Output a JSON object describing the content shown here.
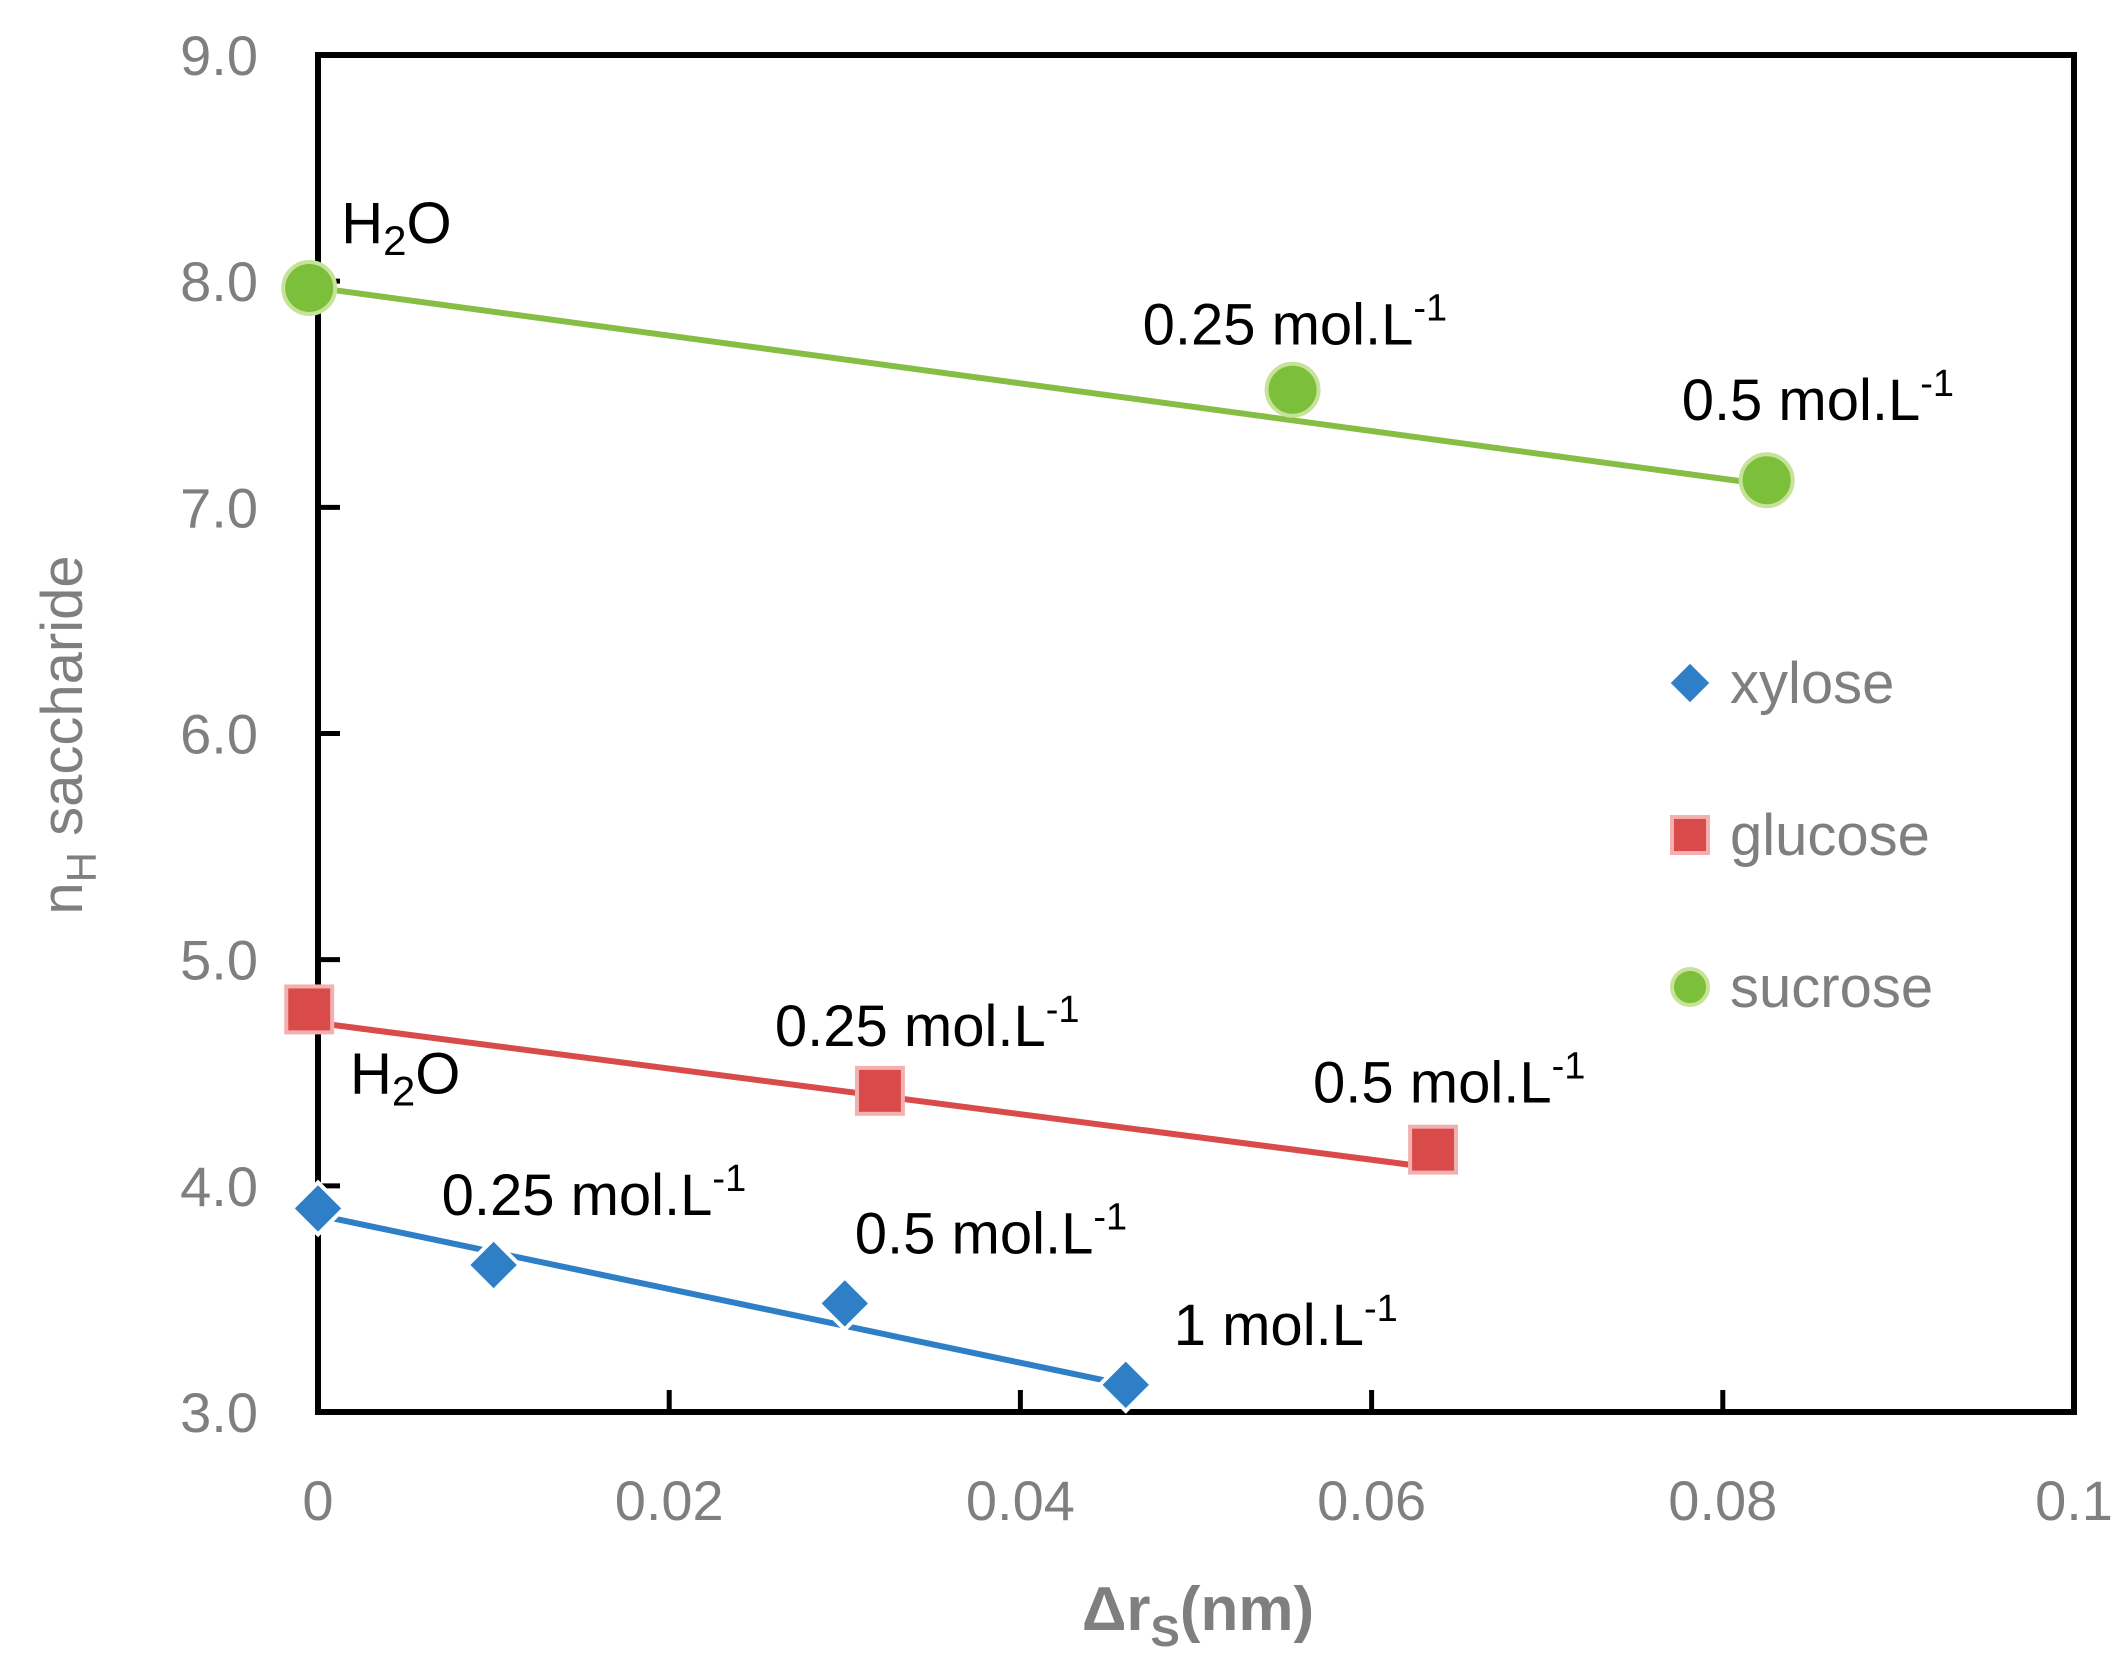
{
  "chart_data": {
    "type": "scatter",
    "title": "",
    "xlabel": "Δr",
    "xlabel_sub": "S",
    "xlabel_unit": "(nm)",
    "ylabel_prefix": "n",
    "ylabel_sub": "H",
    "ylabel_suffix": " saccharide",
    "xlim": [
      0,
      0.1
    ],
    "ylim": [
      3.0,
      9.0
    ],
    "x_ticks": [
      0,
      0.02,
      0.04,
      0.06,
      0.08,
      0.1
    ],
    "x_tick_labels": [
      "0",
      "0.02",
      "0.04",
      "0.06",
      "0.08",
      "0.1"
    ],
    "y_ticks": [
      3,
      4,
      5,
      6,
      7,
      8,
      9
    ],
    "y_tick_labels": [
      "3.0",
      "4.0",
      "5.0",
      "6.0",
      "7.0",
      "8.0",
      "9.0"
    ],
    "grid": false,
    "legend_position": "right",
    "series": [
      {
        "name": "xylose",
        "marker": "diamond",
        "color": "#2e7fc6",
        "line_color": "#2e7fc6",
        "x": [
          0,
          0.01,
          0.03,
          0.046
        ],
        "y": [
          3.9,
          3.65,
          3.48,
          3.12
        ],
        "trend": [
          [
            0,
            3.87
          ],
          [
            0.046,
            3.12
          ]
        ],
        "labels": [
          "H₂O",
          "0.25 mol.L",
          "0.5 mol.L",
          "1 mol.L"
        ],
        "label_sups": [
          "",
          "-1",
          "-1",
          "-1"
        ]
      },
      {
        "name": "glucose",
        "marker": "square",
        "color": "#d94a4a",
        "line_color": "#d94a4a",
        "x": [
          -0.0005,
          0.032,
          0.0635
        ],
        "y": [
          4.78,
          4.42,
          4.16
        ],
        "trend": [
          [
            0,
            4.72
          ],
          [
            0.0635,
            4.08
          ]
        ],
        "labels": [
          "",
          "0.25 mol.L",
          "0.5 mol.L"
        ],
        "label_sups": [
          "",
          "-1",
          "-1"
        ]
      },
      {
        "name": "sucrose",
        "marker": "circle",
        "color": "#7cbf3a",
        "line_color": "#86bd45",
        "x": [
          -0.0005,
          0.0555,
          0.0825
        ],
        "y": [
          7.97,
          7.52,
          7.12
        ],
        "trend": [
          [
            0,
            7.97
          ],
          [
            0.0825,
            7.1
          ]
        ],
        "labels": [
          "H₂O",
          "0.25 mol.L",
          "0.5 mol.L"
        ],
        "label_sups": [
          "",
          "-1",
          "-1"
        ]
      }
    ]
  }
}
